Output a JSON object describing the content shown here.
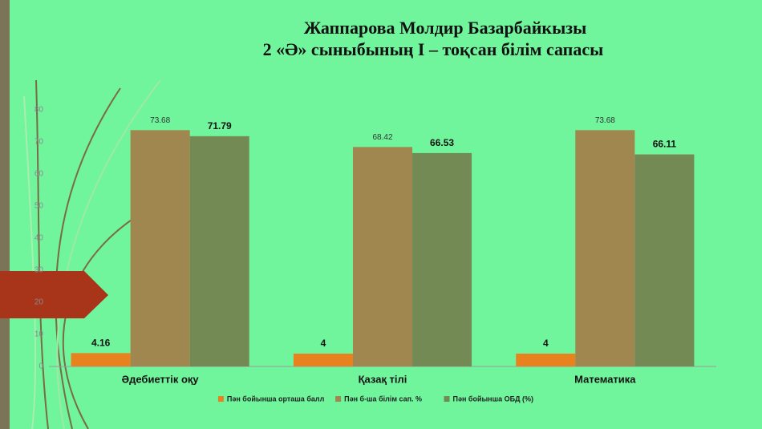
{
  "chart_data": {
    "type": "bar",
    "title": "Жаппарова Молдир Базарбайкызы",
    "subtitle": "2 «Ә»   сыныбының  I – тоқсан білім сапасы",
    "categories": [
      "Әдебиеттік оқу",
      "Қазақ тілі",
      "Математика"
    ],
    "series": [
      {
        "name": "Пән бойынша орташа балл",
        "color": "#e8821e",
        "values": [
          4.16,
          4,
          4
        ]
      },
      {
        "name": "Пән б-ша білім сап. %",
        "color": "#a0874f",
        "values": [
          73.68,
          68.42,
          73.68
        ]
      },
      {
        "name": "Пән бойынша ОБД (%)",
        "color": "#748a54",
        "values": [
          71.79,
          66.53,
          66.11
        ]
      }
    ],
    "ylim": [
      0,
      80
    ],
    "yticks": [
      0,
      10,
      20,
      30,
      40,
      50,
      60,
      70,
      80
    ],
    "grid": false,
    "legend": "bottom"
  }
}
